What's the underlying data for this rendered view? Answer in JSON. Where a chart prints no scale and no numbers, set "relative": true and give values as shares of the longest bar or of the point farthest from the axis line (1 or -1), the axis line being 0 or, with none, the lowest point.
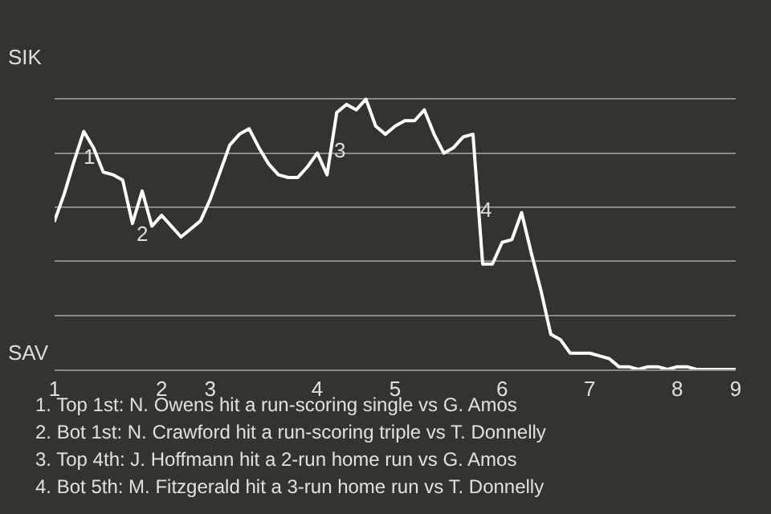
{
  "chart_data": {
    "type": "line",
    "categories": [
      "1",
      null,
      null,
      null,
      null,
      null,
      null,
      null,
      null,
      null,
      null,
      "2",
      null,
      null,
      null,
      null,
      "3",
      null,
      null,
      null,
      null,
      null,
      null,
      null,
      null,
      null,
      null,
      "4",
      null,
      null,
      null,
      null,
      null,
      null,
      null,
      "5",
      null,
      null,
      null,
      null,
      null,
      null,
      null,
      null,
      null,
      null,
      "6",
      null,
      null,
      null,
      null,
      null,
      null,
      null,
      null,
      "7",
      null,
      null,
      null,
      null,
      null,
      null,
      null,
      null,
      "8",
      null,
      null,
      null,
      null,
      null,
      "9"
    ],
    "series": [
      {
        "color": "#ffffff",
        "values": [
          0.55,
          0.65,
          0.77,
          0.88,
          0.82,
          0.73,
          0.72,
          0.7,
          0.54,
          0.66,
          0.53,
          0.57,
          0.53,
          0.49,
          0.52,
          0.55,
          0.63,
          0.73,
          0.83,
          0.87,
          0.89,
          0.82,
          0.76,
          0.72,
          0.71,
          0.71,
          0.75,
          0.8,
          0.72,
          0.95,
          0.98,
          0.96,
          1,
          0.9,
          0.87,
          0.9,
          0.92,
          0.92,
          0.96,
          0.87,
          0.8,
          0.82,
          0.86,
          0.87,
          0.39,
          0.39,
          0.47,
          0.48,
          0.58,
          0.43,
          0.29,
          0.13,
          0.11,
          0.06,
          0.06,
          0.06,
          0.05,
          0.04,
          0.01,
          0.01,
          0,
          0.01,
          0.01,
          0,
          0.01,
          0.01,
          0,
          0,
          0,
          0,
          0
        ]
      }
    ],
    "relative": true,
    "grid": "y",
    "marker": "none",
    "line_style": "solid",
    "annotations": [
      "SIK",
      "SAV",
      "1",
      "2",
      "3",
      "4",
      "1. Top 1st: N. Owens hit a run-scoring single vs G. Amos",
      "2. Bot 1st: N. Crawford hit a run-scoring triple vs T. Donnelly",
      "3. Top 4th: J. Hoffmann hit a 2-run home run vs G. Amos",
      "4. Bot 5th: M. Fitzgerald hit a 3-run home run vs T. Donnelly"
    ]
  }
}
